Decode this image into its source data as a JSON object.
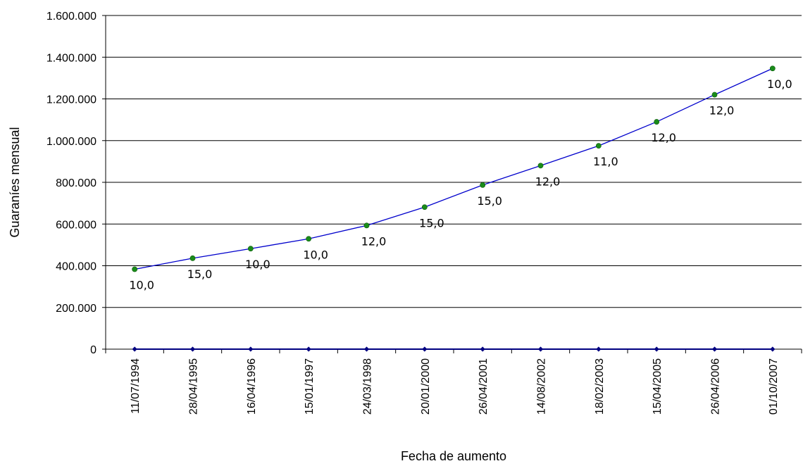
{
  "chart_data": {
    "type": "line",
    "title": "",
    "xlabel": "Fecha de aumento",
    "ylabel": "Guaraníes mensual",
    "categories": [
      "11/07/1994",
      "28/04/1995",
      "16/04/1996",
      "15/01/1997",
      "24/03/1998",
      "20/01/2000",
      "26/04/2001",
      "14/08/2002",
      "18/02/2003",
      "15/04/2005",
      "26/04/2006",
      "01/10/2007"
    ],
    "ylim": [
      0,
      1600000
    ],
    "yticks": [
      0,
      200000,
      400000,
      600000,
      800000,
      1000000,
      1200000,
      1400000,
      1600000
    ],
    "ytick_labels": [
      "0",
      "200.000",
      "400.000",
      "600.000",
      "800.000",
      "1.000.000",
      "1.200.000",
      "1.400.000",
      "1.600.000"
    ],
    "grid": true,
    "legend": "none",
    "series": [
      {
        "values": [
          383000,
          436000,
          482000,
          529000,
          593000,
          681000,
          787000,
          880000,
          975000,
          1090000,
          1220000,
          1346000
        ],
        "labels": [
          "10,0",
          "15,0",
          "10,0",
          "10,0",
          "12,0",
          "15,0",
          "15,0",
          "12,0",
          "11,0",
          "12,0",
          "12,0",
          "10,0"
        ],
        "line_color": "#0000cc",
        "marker_color": "#1a8c1a"
      },
      {
        "values": [
          0,
          0,
          0,
          0,
          0,
          0,
          0,
          0,
          0,
          0,
          0,
          0
        ],
        "line_color": "#000080",
        "marker_color": "#000080"
      }
    ]
  }
}
